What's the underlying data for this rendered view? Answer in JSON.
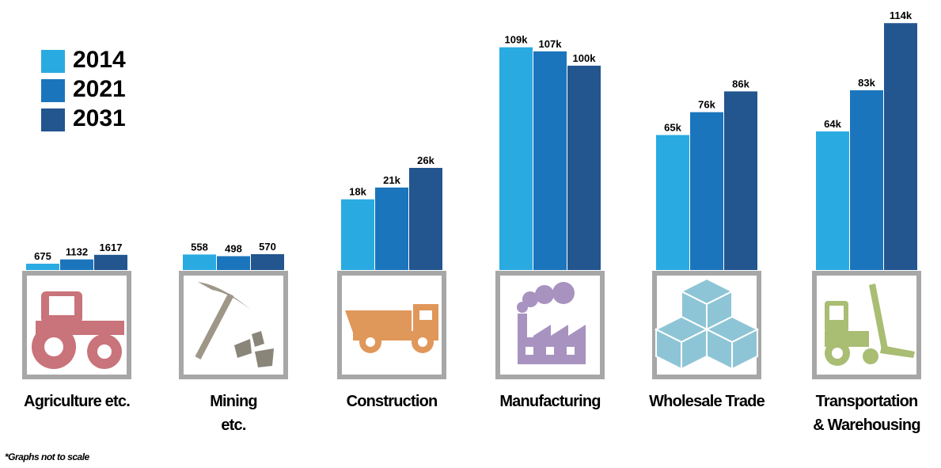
{
  "chart_data": {
    "type": "bar",
    "categories": [
      "Agriculture etc.",
      "Mining\netc.",
      "Construction",
      "Manufacturing",
      "Wholesale Trade",
      "Transportation\n& Warehousing"
    ],
    "series": [
      {
        "name": "2014",
        "color": "#29abe2",
        "values": [
          675,
          558,
          18000,
          109000,
          65000,
          64000
        ],
        "value_labels": [
          "675",
          "558",
          "18k",
          "109k",
          "65k",
          "64k"
        ]
      },
      {
        "name": "2021",
        "color": "#1b75bc",
        "values": [
          1132,
          498,
          21000,
          107000,
          76000,
          83000
        ],
        "value_labels": [
          "1132",
          "498",
          "21k",
          "107k",
          "76k",
          "83k"
        ]
      },
      {
        "name": "2031",
        "color": "#23558f",
        "values": [
          1617,
          570,
          26000,
          100000,
          86000,
          114000
        ],
        "value_labels": [
          "1617",
          "570",
          "26k",
          "100k",
          "86k",
          "114k"
        ]
      }
    ],
    "ylim_by_category": [
      [
        0,
        27000
      ],
      [
        0,
        9100
      ],
      [
        0,
        64500
      ],
      [
        0,
        124000
      ],
      [
        0,
        122000
      ],
      [
        0,
        117000
      ]
    ],
    "note": "*Graphs not to scale"
  }
}
